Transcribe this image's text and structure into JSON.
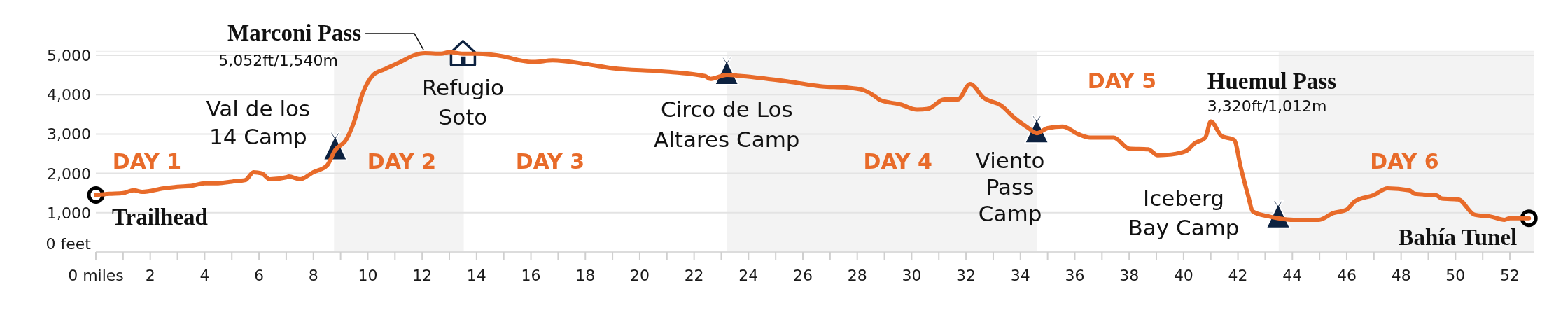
{
  "chart_data": {
    "type": "line",
    "x": [
      0,
      0.5,
      1.0,
      1.4,
      1.7,
      2.5,
      3.0,
      3.5,
      4.0,
      4.5,
      5.0,
      5.5,
      5.8,
      6.1,
      6.4,
      7.0,
      7.1,
      7.5,
      8.0,
      8.5,
      8.8,
      9.2,
      9.5,
      9.8,
      10.2,
      10.6,
      11.2,
      11.7,
      12.1,
      12.7,
      13.0,
      13.5,
      14.0,
      15.0,
      15.6,
      16.1,
      16.8,
      18.0,
      19.0,
      20.8,
      22.4,
      22.6,
      23.2,
      23.75,
      25.5,
      26.7,
      27.6,
      28.2,
      28.6,
      28.85,
      29.6,
      30.2,
      30.6,
      31.2,
      31.7,
      32.15,
      32.65,
      33.3,
      33.8,
      34.3,
      34.6,
      35.0,
      35.56,
      36.12,
      36.56,
      37.43,
      38.0,
      38.7,
      39.05,
      39.55,
      40.1,
      40.4,
      40.8,
      41.0,
      41.4,
      41.86,
      42.1,
      42.36,
      42.55,
      43.17,
      43.48,
      44.04,
      44.98,
      45.5,
      46.0,
      46.3,
      47.0,
      47.5,
      48.3,
      48.5,
      49.3,
      49.5,
      50.1,
      50.7,
      51.3,
      51.8,
      52.0,
      52.7
    ],
    "series": [
      {
        "color": "#e86b2a",
        "values": [
          1450,
          1480,
          1500,
          1570,
          1530,
          1620,
          1660,
          1680,
          1750,
          1750,
          1790,
          1830,
          2030,
          2000,
          1850,
          1900,
          1920,
          1850,
          2030,
          2200,
          2590,
          2850,
          3320,
          4010,
          4500,
          4640,
          4830,
          5000,
          5052,
          5040,
          5080,
          5040,
          5040,
          4970,
          4870,
          4830,
          4870,
          4780,
          4670,
          4590,
          4470,
          4400,
          4500,
          4470,
          4330,
          4210,
          4180,
          4120,
          3980,
          3860,
          3750,
          3620,
          3640,
          3880,
          3880,
          4270,
          3920,
          3720,
          3400,
          3150,
          3020,
          3150,
          3190,
          3000,
          2910,
          2910,
          2630,
          2610,
          2460,
          2480,
          2570,
          2760,
          2910,
          3320,
          2950,
          2850,
          2160,
          1470,
          1030,
          900,
          860,
          820,
          820,
          990,
          1080,
          1290,
          1450,
          1620,
          1570,
          1480,
          1440,
          1360,
          1340,
          950,
          900,
          820,
          860,
          860
        ]
      }
    ],
    "xlim": [
      0,
      52.9
    ],
    "xticks": [
      {
        "value": 0,
        "label": "0 miles"
      },
      {
        "value": 1,
        "label": null
      },
      2,
      {
        "value": 3,
        "label": null
      },
      4,
      {
        "value": 5,
        "label": null
      },
      6,
      {
        "value": 7,
        "label": null
      },
      8,
      {
        "value": 9,
        "label": null
      },
      10,
      {
        "value": 11,
        "label": null
      },
      12,
      {
        "value": 13,
        "label": null
      },
      14,
      {
        "value": 15,
        "label": null
      },
      16,
      {
        "value": 17,
        "label": null
      },
      18,
      {
        "value": 19,
        "label": null
      },
      20,
      {
        "value": 21,
        "label": null
      },
      22,
      {
        "value": 23,
        "label": null
      },
      24,
      {
        "value": 25,
        "label": null
      },
      26,
      {
        "value": 27,
        "label": null
      },
      28,
      {
        "value": 29,
        "label": null
      },
      30,
      {
        "value": 31,
        "label": null
      },
      32,
      {
        "value": 33,
        "label": null
      },
      34,
      {
        "value": 35,
        "label": null
      },
      36,
      {
        "value": 37,
        "label": null
      },
      38,
      {
        "value": 39,
        "label": null
      },
      40,
      {
        "value": 41,
        "label": null
      },
      42,
      {
        "value": 43,
        "label": null
      },
      44,
      {
        "value": 45,
        "label": null
      },
      46,
      {
        "value": 47,
        "label": null
      },
      48,
      {
        "value": 49,
        "label": null
      },
      50,
      {
        "value": 51,
        "label": null
      },
      52
    ],
    "ylim": [
      0,
      5100
    ],
    "yticks": [
      {
        "value": 0,
        "label": "0 feet"
      },
      {
        "value": 1000,
        "label": "1,000"
      },
      {
        "value": 2000,
        "label": "2,000"
      },
      {
        "value": 3000,
        "label": "3,000"
      },
      {
        "value": 4000,
        "label": "4,000"
      },
      {
        "value": 5000,
        "label": "5,000"
      }
    ],
    "grid": "y",
    "bands": [
      {
        "axis": "x",
        "from": 8.76,
        "to": 13.53,
        "label": "DAY 2",
        "color": "#f3f3f3"
      },
      {
        "axis": "x",
        "from": 23.2,
        "to": 34.6,
        "label": "DAY 4",
        "color": "#f3f3f3"
      },
      {
        "axis": "x",
        "from": 43.5,
        "to": 52.9,
        "label": "DAY 6",
        "color": "#f3f3f3"
      }
    ],
    "annotations": [
      {
        "text": "Trailhead",
        "x": 0,
        "y": 1450
      },
      {
        "text": "Val de los\n14 Camp",
        "x": 8.8,
        "y": 2590
      },
      {
        "text": "Marconi Pass\n5,052ft/1,540m",
        "x": 12.1,
        "y": 5052
      },
      {
        "text": "Refugio\nSoto",
        "x": 13.5,
        "y": 5040
      },
      {
        "text": "Circo de Los\nAltares Camp",
        "x": 23.2,
        "y": 4500
      },
      {
        "text": "Viento\nPass\nCamp",
        "x": 34.6,
        "y": 3020
      },
      {
        "text": "Huemul Pass\n3,320ft/1,012m",
        "x": 41.0,
        "y": 3320
      },
      {
        "text": "Iceberg\nBay Camp",
        "x": 43.48,
        "y": 860
      },
      {
        "text": "Bahía Tunel",
        "x": 52.7,
        "y": 860
      },
      "DAY 1",
      "DAY 3",
      "DAY 5"
    ]
  }
}
